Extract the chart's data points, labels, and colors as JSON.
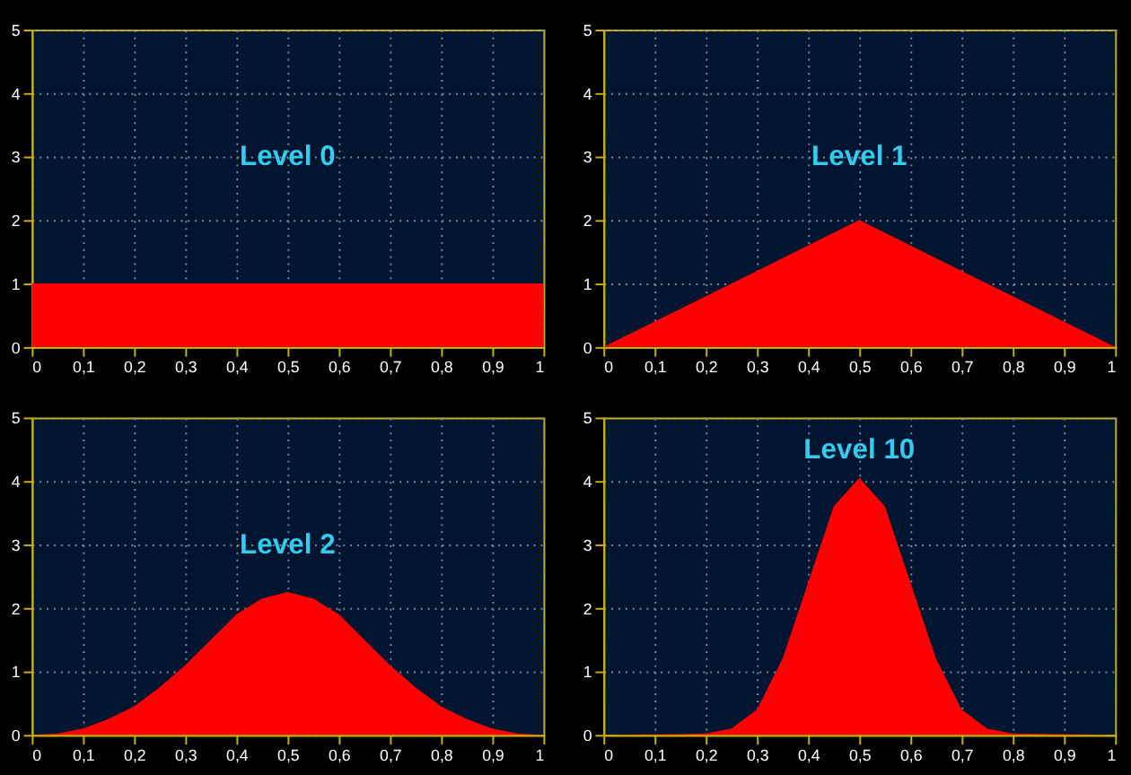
{
  "chart_data": [
    {
      "type": "area",
      "title": "Level 0",
      "x": [
        0,
        0.1,
        0.2,
        0.3,
        0.4,
        0.5,
        0.6,
        0.7,
        0.8,
        0.9,
        1
      ],
      "series": [
        {
          "color": "#ff0000",
          "values": [
            1,
            1,
            1,
            1,
            1,
            1,
            1,
            1,
            1,
            1,
            1
          ]
        }
      ],
      "xlim": [
        0,
        1
      ],
      "ylim": [
        0,
        5
      ],
      "xticks": [
        {
          "value": 0,
          "label": "0"
        },
        {
          "value": 0.1,
          "label": "0,1"
        },
        {
          "value": 0.2,
          "label": "0,2"
        },
        {
          "value": 0.3,
          "label": "0,3"
        },
        {
          "value": 0.4,
          "label": "0,4"
        },
        {
          "value": 0.5,
          "label": "0,5"
        },
        {
          "value": 0.6,
          "label": "0,6"
        },
        {
          "value": 0.7,
          "label": "0,7"
        },
        {
          "value": 0.8,
          "label": "0,8"
        },
        {
          "value": 0.9,
          "label": "0,9"
        },
        {
          "value": 1,
          "label": "1"
        }
      ],
      "yticks": [
        0,
        1,
        2,
        3,
        4,
        5
      ],
      "grid": true
    },
    {
      "type": "area",
      "title": "Level 1",
      "x": [
        0,
        0.1,
        0.2,
        0.3,
        0.4,
        0.5,
        0.6,
        0.7,
        0.8,
        0.9,
        1
      ],
      "series": [
        {
          "color": "#ff0000",
          "values": [
            0,
            0.4,
            0.8,
            1.2,
            1.6,
            2,
            1.6,
            1.2,
            0.8,
            0.4,
            0
          ]
        }
      ],
      "xlim": [
        0,
        1
      ],
      "ylim": [
        0,
        5
      ],
      "xticks": [
        {
          "value": 0,
          "label": "0"
        },
        {
          "value": 0.1,
          "label": "0,1"
        },
        {
          "value": 0.2,
          "label": "0,2"
        },
        {
          "value": 0.3,
          "label": "0,3"
        },
        {
          "value": 0.4,
          "label": "0,4"
        },
        {
          "value": 0.5,
          "label": "0,5"
        },
        {
          "value": 0.6,
          "label": "0,6"
        },
        {
          "value": 0.7,
          "label": "0,7"
        },
        {
          "value": 0.8,
          "label": "0,8"
        },
        {
          "value": 0.9,
          "label": "0,9"
        },
        {
          "value": 1,
          "label": "1"
        }
      ],
      "yticks": [
        0,
        1,
        2,
        3,
        4,
        5
      ],
      "grid": true
    },
    {
      "type": "area",
      "title": "Level 2",
      "x": [
        0,
        0.05,
        0.1,
        0.15,
        0.2,
        0.25,
        0.3,
        0.35,
        0.4,
        0.45,
        0.5,
        0.55,
        0.6,
        0.65,
        0.7,
        0.75,
        0.8,
        0.85,
        0.9,
        0.95,
        1
      ],
      "series": [
        {
          "color": "#ff0000",
          "values": [
            0,
            0.02,
            0.1,
            0.25,
            0.45,
            0.75,
            1.1,
            1.5,
            1.9,
            2.15,
            2.25,
            2.15,
            1.9,
            1.5,
            1.1,
            0.75,
            0.45,
            0.25,
            0.1,
            0.02,
            0
          ]
        }
      ],
      "xlim": [
        0,
        1
      ],
      "ylim": [
        0,
        5
      ],
      "xticks": [
        {
          "value": 0,
          "label": "0"
        },
        {
          "value": 0.1,
          "label": "0,1"
        },
        {
          "value": 0.2,
          "label": "0,2"
        },
        {
          "value": 0.3,
          "label": "0,3"
        },
        {
          "value": 0.4,
          "label": "0,4"
        },
        {
          "value": 0.5,
          "label": "0,5"
        },
        {
          "value": 0.6,
          "label": "0,6"
        },
        {
          "value": 0.7,
          "label": "0,7"
        },
        {
          "value": 0.8,
          "label": "0,8"
        },
        {
          "value": 0.9,
          "label": "0,9"
        },
        {
          "value": 1,
          "label": "1"
        }
      ],
      "yticks": [
        0,
        1,
        2,
        3,
        4,
        5
      ],
      "grid": true
    },
    {
      "type": "area",
      "title": "Level 10",
      "x": [
        0,
        0.2,
        0.25,
        0.3,
        0.35,
        0.4,
        0.45,
        0.5,
        0.55,
        0.6,
        0.65,
        0.7,
        0.75,
        0.8,
        1
      ],
      "series": [
        {
          "color": "#ff0000",
          "values": [
            0,
            0.02,
            0.1,
            0.4,
            1.2,
            2.4,
            3.6,
            4.05,
            3.6,
            2.4,
            1.2,
            0.4,
            0.1,
            0.02,
            0
          ]
        }
      ],
      "xlim": [
        0,
        1
      ],
      "ylim": [
        0,
        5
      ],
      "xticks": [
        {
          "value": 0,
          "label": "0"
        },
        {
          "value": 0.1,
          "label": "0,1"
        },
        {
          "value": 0.2,
          "label": "0,2"
        },
        {
          "value": 0.3,
          "label": "0,3"
        },
        {
          "value": 0.4,
          "label": "0,4"
        },
        {
          "value": 0.5,
          "label": "0,5"
        },
        {
          "value": 0.6,
          "label": "0,6"
        },
        {
          "value": 0.7,
          "label": "0,7"
        },
        {
          "value": 0.8,
          "label": "0,8"
        },
        {
          "value": 0.9,
          "label": "0,9"
        },
        {
          "value": 1,
          "label": "1"
        }
      ],
      "yticks": [
        0,
        1,
        2,
        3,
        4,
        5
      ],
      "grid": true
    }
  ]
}
